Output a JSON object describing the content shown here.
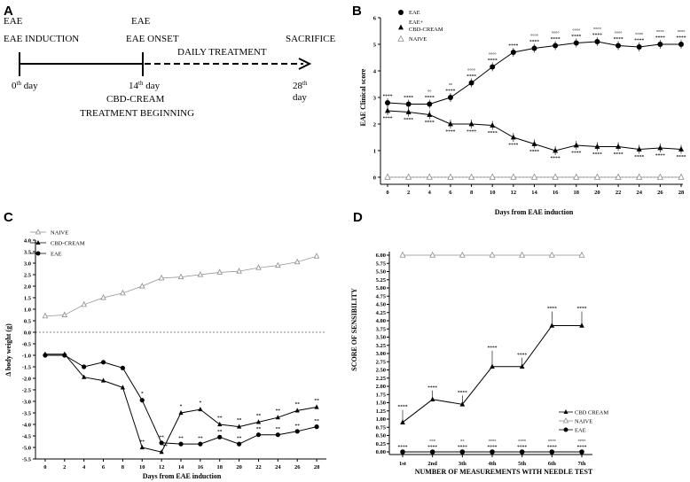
{
  "panels": {
    "A": "A",
    "B": "B",
    "C": "C",
    "D": "D"
  },
  "timeline": {
    "eae_induction": "EAE INDUCTION",
    "eae_onset": "EAE ONSET",
    "daily_treatment": "DAILY TREATMENT",
    "sacrifice": "SACRIFICE",
    "day0": "0",
    "day14": "14",
    "day28": "28",
    "th": "th",
    "day_word": " day",
    "day28_word": "day",
    "cbd_beginning_1": "CBD-CREAM",
    "cbd_beginning_2": "TREATMENT BEGINNING"
  },
  "colors": {
    "line": "#000000",
    "naive": "#8c8c8c"
  },
  "chart_data": [
    {
      "id": "B",
      "type": "line",
      "xlabel": "Days from EAE induction",
      "ylabel": "EAE Clinical score",
      "xlim": [
        0,
        28
      ],
      "ylim": [
        0,
        6
      ],
      "xticks": [
        0,
        2,
        4,
        6,
        8,
        10,
        12,
        14,
        16,
        18,
        20,
        22,
        24,
        26,
        28
      ],
      "yticks": [
        0,
        1,
        2,
        3,
        4,
        5,
        6
      ],
      "legend": [
        "EAE",
        "EAE+ CBD-CREAM",
        "NAIVE"
      ],
      "legend_eae": "EAE",
      "legend_cbd_1": "EAE+",
      "legend_cbd_2": "CBD-CREAM",
      "legend_naive": "NAIVE",
      "x": [
        0,
        2,
        4,
        6,
        8,
        10,
        12,
        14,
        16,
        18,
        20,
        22,
        24,
        26,
        28
      ],
      "series": [
        {
          "name": "EAE",
          "marker": "circle",
          "values": [
            2.8,
            2.75,
            2.75,
            3.0,
            3.55,
            4.15,
            4.7,
            4.85,
            4.95,
            5.05,
            5.1,
            4.95,
            4.9,
            5.0,
            5.0
          ]
        },
        {
          "name": "EAE+ CBD-CREAM",
          "marker": "triangle",
          "values": [
            2.5,
            2.45,
            2.35,
            2.0,
            2.0,
            1.95,
            1.5,
            1.25,
            1.0,
            1.2,
            1.15,
            1.15,
            1.05,
            1.1,
            1.05
          ]
        },
        {
          "name": "NAIVE",
          "marker": "open-triangle",
          "values": [
            0,
            0,
            0,
            0,
            0,
            0,
            0,
            0,
            0,
            0,
            0,
            0,
            0,
            0,
            0
          ]
        }
      ],
      "sig_above": [
        "****",
        "****",
        "°°\n****",
        "°°\n****",
        "°°°°\n****",
        "°°°°\n****",
        "****",
        "°°°°\n****",
        "°°°°\n****",
        "°°°°\n****",
        "°°°°\n****",
        "°°°°\n****",
        "°°°°\n****",
        "°°°°\n****",
        "°°°°\n****"
      ],
      "sig_below": [
        "****",
        "****",
        "****",
        "****",
        "****",
        "****",
        "****",
        "****",
        "****",
        "****",
        "****",
        "****",
        "****",
        "****",
        "****"
      ]
    },
    {
      "id": "C",
      "type": "line",
      "xlabel": "Days from EAE induction",
      "ylabel": "Δ body weight (g)",
      "xlim": [
        -1,
        29
      ],
      "ylim": [
        -5.5,
        4.0
      ],
      "xticks": [
        0,
        2,
        4,
        6,
        8,
        10,
        12,
        14,
        16,
        18,
        20,
        22,
        24,
        26,
        28
      ],
      "yticks": [
        "4.0",
        "3.5",
        "3.0",
        "2.5",
        "2.0",
        "1.5",
        "1.0",
        "0.5",
        "0.0",
        "-0.5",
        "-1.0",
        "-1.5",
        "-2.0",
        "-2.5",
        "-3.0",
        "-3.5",
        "-4.0",
        "-4.5",
        "-5.0",
        "-5.5"
      ],
      "legend": [
        "NAIVE",
        "CBD-CREAM",
        "EAE"
      ],
      "x": [
        0,
        2,
        4,
        6,
        8,
        10,
        12,
        14,
        16,
        18,
        20,
        22,
        24,
        26,
        28
      ],
      "series": [
        {
          "name": "NAIVE",
          "marker": "open-triangle",
          "values": [
            0.7,
            0.75,
            1.2,
            1.5,
            1.7,
            2.0,
            2.35,
            2.4,
            2.5,
            2.6,
            2.65,
            2.8,
            2.9,
            3.05,
            3.3
          ]
        },
        {
          "name": "CBD-CREAM",
          "marker": "triangle",
          "values": [
            -0.95,
            -0.95,
            -1.95,
            -2.1,
            -2.4,
            -5.0,
            -5.2,
            -3.5,
            -3.35,
            -4.0,
            -4.1,
            -3.9,
            -3.7,
            -3.4,
            -3.25
          ]
        },
        {
          "name": "EAE",
          "marker": "circle",
          "values": [
            -1.0,
            -1.0,
            -1.5,
            -1.3,
            -1.55,
            -2.95,
            -4.8,
            -4.85,
            -4.85,
            -4.55,
            -4.85,
            -4.45,
            -4.45,
            -4.3,
            -4.1
          ]
        }
      ],
      "sig_cbd": [
        "",
        "",
        "",
        "",
        "",
        "",
        "**",
        "*",
        "*",
        "**",
        "**",
        "**",
        "**",
        "**",
        "**"
      ],
      "sig_eae": [
        "",
        "",
        "",
        "",
        "",
        "*",
        "**",
        "**",
        "**",
        "**",
        "**",
        "**",
        "**",
        "**",
        "**"
      ],
      "sig_cbd_low": [
        "",
        "",
        "",
        "",
        "",
        "**",
        "",
        "",
        " ",
        "",
        "",
        "",
        "",
        "",
        ""
      ]
    },
    {
      "id": "D",
      "type": "line",
      "xlabel": "NUMBER OF MEASUREMENTS WITH NEEDLE TEST",
      "ylabel": "SCORE OF SENSIBILITY",
      "ylim": [
        0,
        6
      ],
      "categories": [
        "1st",
        "2nd",
        "3th",
        "4th",
        "5th",
        "6th",
        "7th"
      ],
      "yticks": [
        "0.00",
        "0.25",
        "0.50",
        "0.75",
        "1.00",
        "1.25",
        "1.50",
        "1.75",
        "2.00",
        "2.25",
        "2.50",
        "2.75",
        "3.00",
        "3.25",
        "3.50",
        "3.75",
        "4.00",
        "4.25",
        "4.50",
        "4.75",
        "5.00",
        "5.25",
        "5.50",
        "5.75",
        "6.00"
      ],
      "legend": [
        "CBD CREAM",
        "NAIVE",
        "EAE"
      ],
      "series": [
        {
          "name": "CBD CREAM",
          "marker": "triangle",
          "values": [
            0.9,
            1.6,
            1.45,
            2.6,
            2.6,
            3.85,
            3.85
          ]
        },
        {
          "name": "NAIVE",
          "marker": "open-triangle",
          "values": [
            6,
            6,
            6,
            6,
            6,
            6,
            6
          ]
        },
        {
          "name": "EAE",
          "marker": "circle",
          "values": [
            0,
            0,
            0,
            0,
            0,
            0,
            0
          ]
        }
      ],
      "sig_cbd": [
        "****",
        "****",
        "****",
        "****",
        "****",
        "****",
        "****"
      ],
      "sig_eae": [
        "****",
        "°°°\n****",
        "°°\n****",
        "°°°°\n****",
        "°°°°\n****",
        "°°°°\n****",
        "°°°°\n****"
      ]
    }
  ]
}
